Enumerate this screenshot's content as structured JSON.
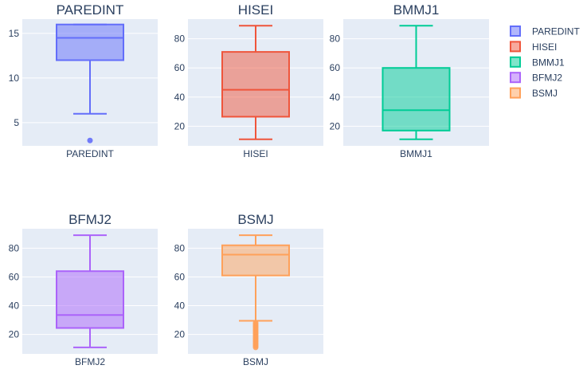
{
  "chart_data": [
    {
      "type": "box",
      "title": "PAREDINT",
      "category": "PAREDINT",
      "color": "#636efa",
      "ylim": [
        2.4,
        16.6
      ],
      "yticks": [
        5,
        10,
        15
      ],
      "box": {
        "lower_whisker": 6,
        "q1": 12,
        "median": 14.5,
        "q3": 16,
        "upper_whisker": 16
      },
      "outliers": [
        3
      ]
    },
    {
      "type": "box",
      "title": "HISEI",
      "category": "HISEI",
      "color": "#ef553b",
      "ylim": [
        6.5,
        93.5
      ],
      "yticks": [
        20,
        40,
        60,
        80
      ],
      "box": {
        "lower_whisker": 11,
        "q1": 26.5,
        "median": 45,
        "q3": 71,
        "upper_whisker": 89
      },
      "outliers": []
    },
    {
      "type": "box",
      "title": "BMMJ1",
      "category": "BMMJ1",
      "color": "#00cc96",
      "ylim": [
        6.5,
        93.5
      ],
      "yticks": [
        20,
        40,
        60,
        80
      ],
      "box": {
        "lower_whisker": 11,
        "q1": 17,
        "median": 31,
        "q3": 60,
        "upper_whisker": 89
      },
      "outliers": []
    },
    {
      "type": "box",
      "title": "BFMJ2",
      "category": "BFMJ2",
      "color": "#ab63fa",
      "ylim": [
        6.5,
        93.5
      ],
      "yticks": [
        20,
        40,
        60,
        80
      ],
      "box": {
        "lower_whisker": 11,
        "q1": 24.5,
        "median": 33.5,
        "q3": 64,
        "upper_whisker": 89
      },
      "outliers": []
    },
    {
      "type": "box",
      "title": "BSMJ",
      "category": "BSMJ",
      "color": "#ffa15a",
      "ylim": [
        6.5,
        93.5
      ],
      "yticks": [
        20,
        40,
        60,
        80
      ],
      "box": {
        "lower_whisker": 29.5,
        "q1": 61,
        "median": 75.5,
        "q3": 82,
        "upper_whisker": 89
      },
      "outliers": [
        11,
        12,
        13,
        14,
        15,
        16,
        17,
        18,
        19,
        20,
        21,
        22,
        23,
        24,
        25,
        26,
        27,
        28
      ]
    }
  ],
  "legend": {
    "placement": "top-right",
    "items": [
      {
        "label": "PAREDINT",
        "color": "#636efa"
      },
      {
        "label": "HISEI",
        "color": "#ef553b"
      },
      {
        "label": "BMMJ1",
        "color": "#00cc96"
      },
      {
        "label": "BFMJ2",
        "color": "#ab63fa"
      },
      {
        "label": "BSMJ",
        "color": "#ffa15a"
      }
    ]
  },
  "style": {
    "plot_background": "#e5ecf6",
    "grid_color": "#ffffff",
    "text_color": "#2a3f5f",
    "grid": true
  }
}
